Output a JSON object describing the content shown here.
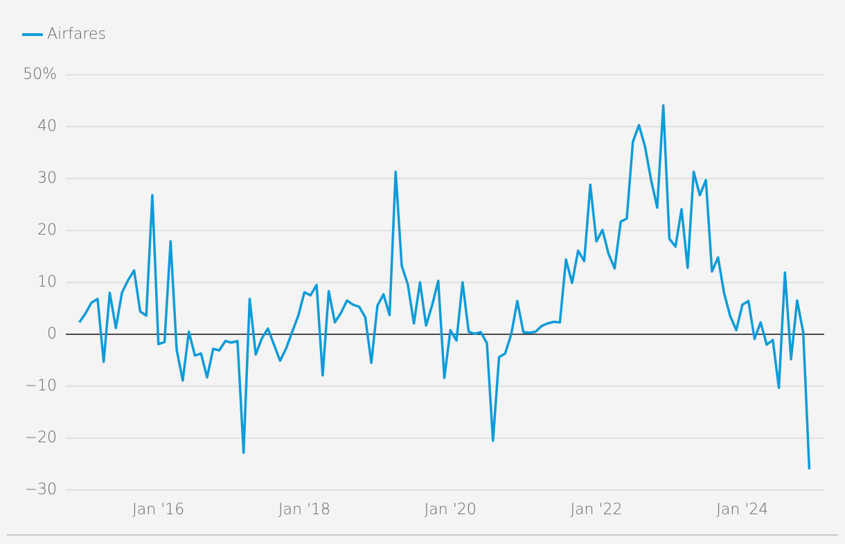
{
  "chart_data": {
    "type": "line",
    "x": [
      "2014-12",
      "2015-01",
      "2015-02",
      "2015-03",
      "2015-04",
      "2015-05",
      "2015-06",
      "2015-07",
      "2015-08",
      "2015-09",
      "2015-10",
      "2015-11",
      "2015-12",
      "2016-01",
      "2016-02",
      "2016-03",
      "2016-04",
      "2016-05",
      "2016-06",
      "2016-07",
      "2016-08",
      "2016-09",
      "2016-10",
      "2016-11",
      "2016-12",
      "2017-01",
      "2017-02",
      "2017-03",
      "2017-04",
      "2017-05",
      "2017-06",
      "2017-07",
      "2017-08",
      "2017-09",
      "2017-10",
      "2017-11",
      "2017-12",
      "2018-01",
      "2018-02",
      "2018-03",
      "2018-04",
      "2018-05",
      "2018-06",
      "2018-07",
      "2018-08",
      "2018-09",
      "2018-10",
      "2018-11",
      "2018-12",
      "2019-01",
      "2019-02",
      "2019-03",
      "2019-04",
      "2019-05",
      "2019-06",
      "2019-07",
      "2019-08",
      "2019-09",
      "2019-10",
      "2019-11",
      "2019-12",
      "2020-01",
      "2020-02",
      "2020-03",
      "2020-04",
      "2020-05",
      "2020-06",
      "2020-07",
      "2020-08",
      "2020-09",
      "2020-10",
      "2020-11",
      "2020-12",
      "2021-01",
      "2021-02",
      "2021-03",
      "2021-04",
      "2021-05",
      "2021-06",
      "2021-07",
      "2021-08",
      "2021-09",
      "2021-10",
      "2021-11",
      "2021-12",
      "2022-01",
      "2022-02",
      "2022-03",
      "2022-04",
      "2022-05",
      "2022-06",
      "2022-07",
      "2022-08",
      "2022-09",
      "2022-10",
      "2022-11",
      "2022-12",
      "2023-01",
      "2023-02",
      "2023-03",
      "2023-04",
      "2023-05",
      "2023-06",
      "2023-07",
      "2023-08",
      "2023-09",
      "2023-10",
      "2023-11",
      "2023-12",
      "2024-01",
      "2024-02",
      "2024-03",
      "2024-04",
      "2024-05",
      "2024-06",
      "2024-07",
      "2024-08",
      "2024-09",
      "2024-10",
      "2024-11",
      "2024-12"
    ],
    "series": [
      {
        "name": "Airfares",
        "color": "#0e9bd8",
        "values": [
          2.3,
          4,
          6.1,
          6.8,
          -5.3,
          8,
          1.2,
          8,
          10.4,
          12.3,
          4.4,
          3.6,
          26.8,
          -1.9,
          -1.5,
          17.9,
          -3,
          -8.9,
          0.5,
          -4.1,
          -3.7,
          -8.3,
          -2.8,
          -3.1,
          -1.3,
          -1.6,
          -1.3,
          -22.8,
          6.8,
          -3.9,
          -0.8,
          1.1,
          -2,
          -5.1,
          -2.7,
          0.5,
          3.6,
          8.1,
          7.5,
          9.5,
          -7.9,
          8.3,
          2.3,
          4.1,
          6.5,
          5.7,
          5.3,
          3.3,
          -5.5,
          5.5,
          7.7,
          3.7,
          31.3,
          13.2,
          9.6,
          2.1,
          10,
          1.7,
          5.6,
          10.3,
          -8.4,
          0.8,
          -1.2,
          10,
          0.5,
          0.1,
          0.4,
          -1.7,
          -20.5,
          -4.4,
          -3.7,
          0,
          6.4,
          0.4,
          0.3,
          0.5,
          1.6,
          2.1,
          2.4,
          2.3,
          14.4,
          9.9,
          16.1,
          14.1,
          28.8,
          17.9,
          20.1,
          15.5,
          12.7,
          21.7,
          22.3,
          37.1,
          40.3,
          36.1,
          29.7,
          24.4,
          44.1,
          18.4,
          16.9,
          24.1,
          12.8,
          31.3,
          26.8,
          29.7,
          12.1,
          14.8,
          7.9,
          3.5,
          0.8,
          5.7,
          6.4,
          -0.9,
          2.3,
          -2,
          -1.1,
          -10.3,
          11.9,
          -4.8,
          6.5,
          0.4,
          -26
        ]
      }
    ],
    "xlim": [
      "2014-10",
      "2025-02"
    ],
    "xticks": [
      {
        "value": "2016-01",
        "label": "Jan '16"
      },
      {
        "value": "2018-01",
        "label": "Jan '18"
      },
      {
        "value": "2020-01",
        "label": "Jan '20"
      },
      {
        "value": "2022-01",
        "label": "Jan '22"
      },
      {
        "value": "2024-01",
        "label": "Jan '24"
      }
    ],
    "ylim": [
      -30,
      50
    ],
    "yticks": [
      {
        "value": -30,
        "label": "−30"
      },
      {
        "value": -20,
        "label": "−20"
      },
      {
        "value": -10,
        "label": "−10"
      },
      0,
      10,
      20,
      30,
      40,
      {
        "value": 50,
        "label": "50%"
      }
    ],
    "grid": true,
    "legend": "top-left"
  }
}
